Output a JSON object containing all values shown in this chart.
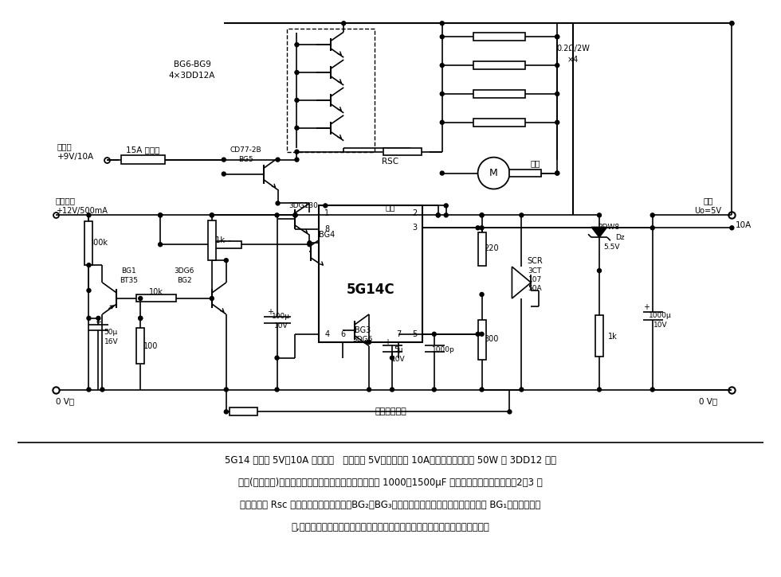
{
  "desc1": "5G14 组成的 5V／10A 稳压电源   输出电压 5V，输出电流 10A，选用四只功耗为 50W 的 3DD12 并联",
  "desc2": "使用(加散热板)。整流输出的滤波电容容量，可按每安培 1000～1500μF 选择。电路具有三种保护：2、3 脚",
  "desc3": "之间的电阻 Rsc 设定了内部的限流保护；BG₂、BG₃组成的延时启动短路截流保护，且带有 BG₁组成的自激振",
  "desc4": "荡,完成短路消除后自动启动；可控硅和稳压管输出过压时，实现对负载的保护。",
  "bg_color": "#ffffff"
}
